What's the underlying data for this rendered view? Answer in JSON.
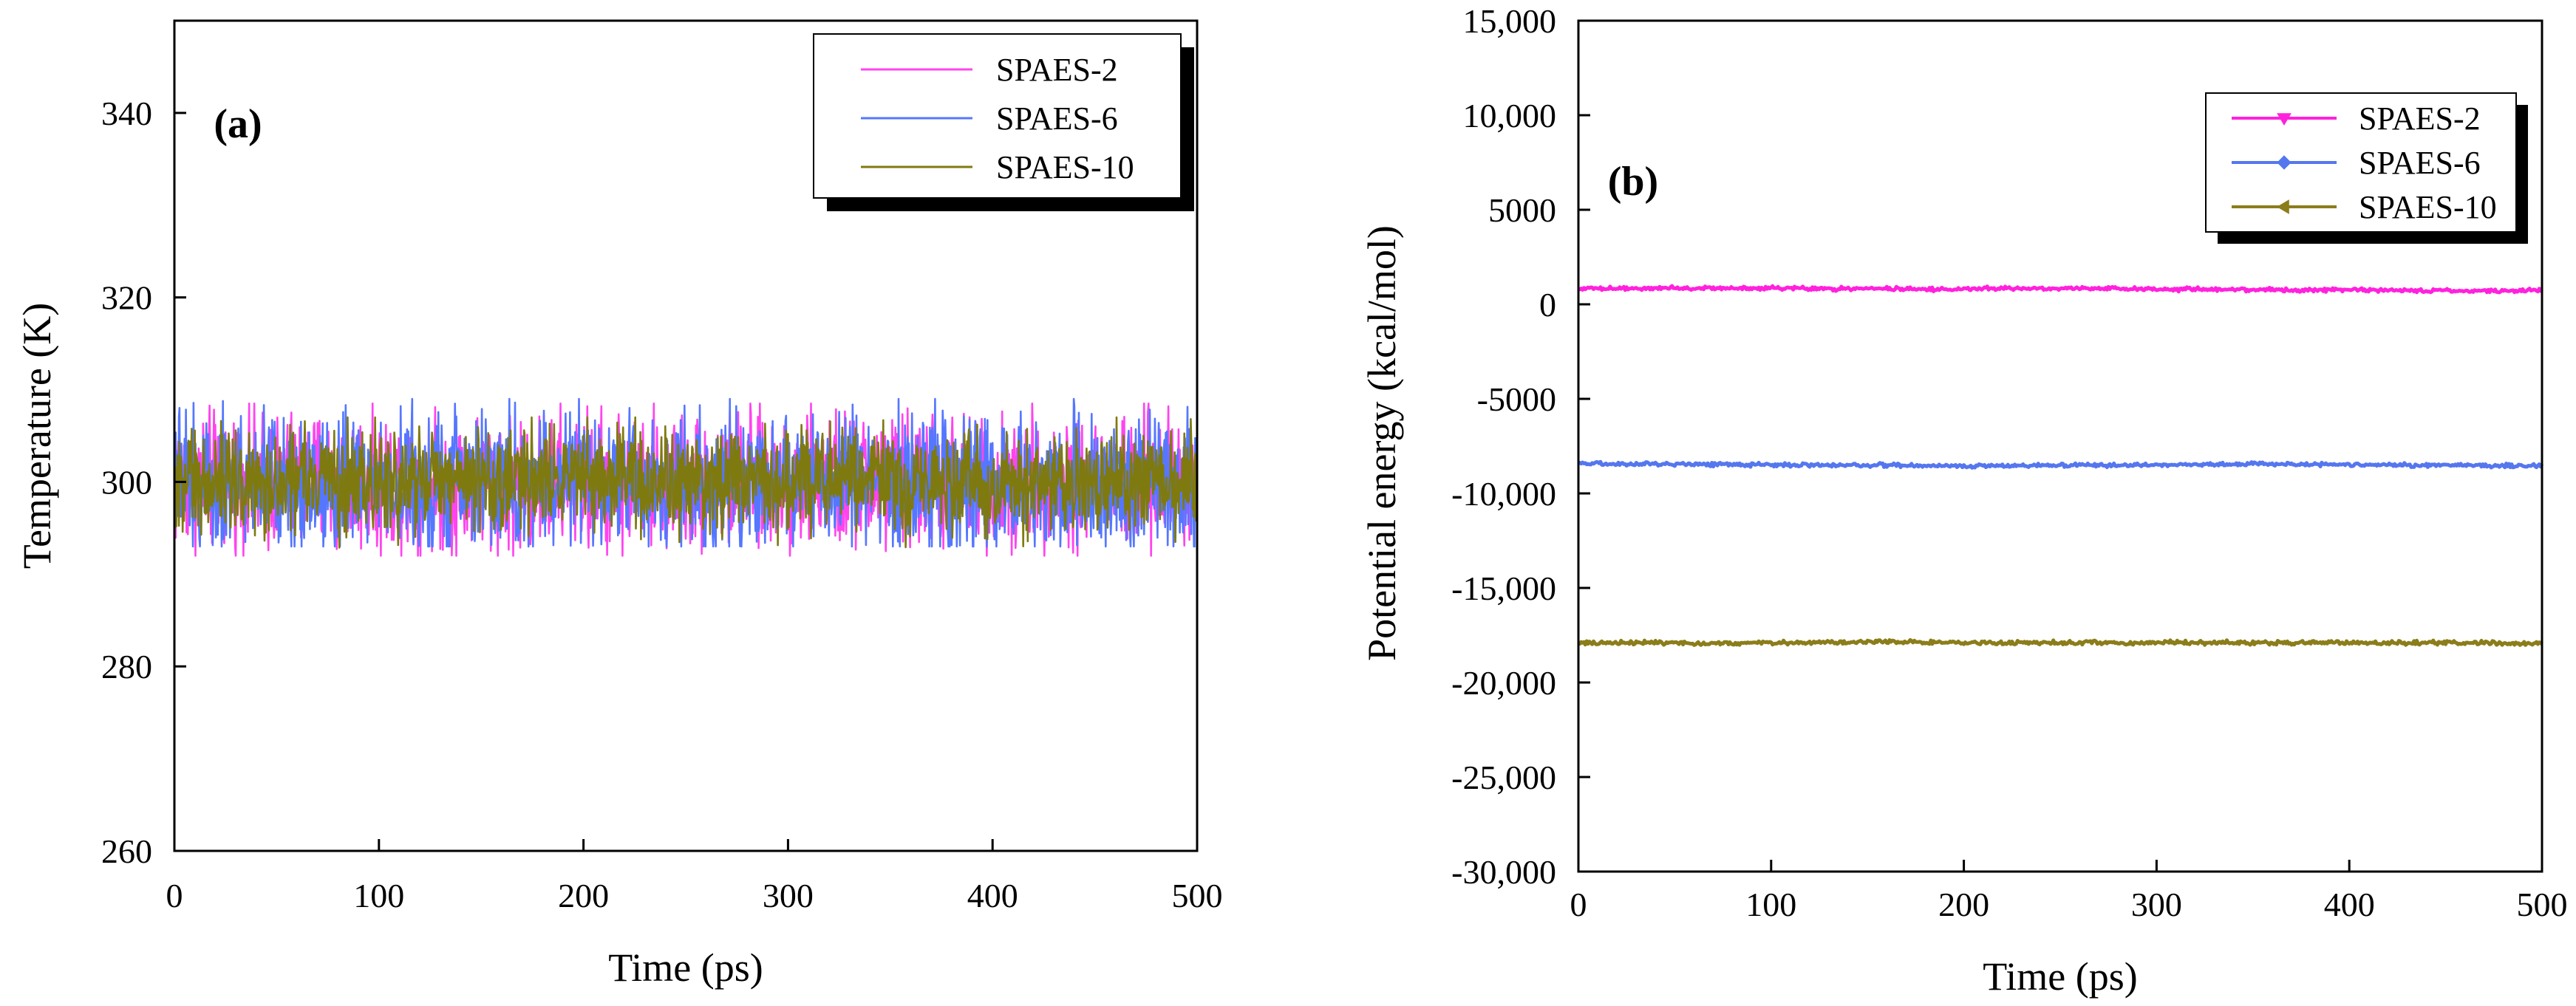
{
  "chart_data": [
    {
      "panel_label": "(a)",
      "type": "line",
      "xlabel": "Time (ps)",
      "ylabel": "Temperature (K)",
      "xlim": [
        0,
        500
      ],
      "ylim": [
        260,
        350
      ],
      "x_ticks": [
        0,
        100,
        200,
        300,
        400,
        500
      ],
      "x_tick_labels": [
        "0",
        "100",
        "200",
        "300",
        "400",
        "500"
      ],
      "y_ticks": [
        260,
        280,
        300,
        320,
        340
      ],
      "y_tick_labels": [
        "260",
        "280",
        "300",
        "320",
        "340"
      ],
      "grid": false,
      "legend_position": "top-right",
      "series": [
        {
          "name": "SPAES-2",
          "color": "#ff44ee",
          "marker": "none",
          "mean": 300,
          "fluctuation": 3.2,
          "min": 292,
          "max": 308.5
        },
        {
          "name": "SPAES-6",
          "color": "#5577ff",
          "marker": "none",
          "mean": 300,
          "fluctuation": 3.2,
          "min": 293,
          "max": 309
        },
        {
          "name": "SPAES-10",
          "color": "#7f7a10",
          "marker": "none",
          "mean": 300,
          "fluctuation": 2.4,
          "min": 292,
          "max": 307
        }
      ]
    },
    {
      "panel_label": "(b)",
      "type": "line",
      "xlabel": "Time (ps)",
      "ylabel": "Potential energy (kcal/mol)",
      "xlim": [
        0,
        500
      ],
      "ylim": [
        -30000,
        15000
      ],
      "x_ticks": [
        0,
        100,
        200,
        300,
        400,
        500
      ],
      "x_tick_labels": [
        "0",
        "100",
        "200",
        "300",
        "400",
        "500"
      ],
      "y_ticks": [
        -30000,
        -25000,
        -20000,
        -15000,
        -10000,
        -5000,
        0,
        5000,
        10000,
        15000
      ],
      "y_tick_labels": [
        "-30,000",
        "-25,000",
        "-20,000",
        "-15,000",
        "-10,000",
        "-5000",
        "0",
        "5000",
        "10,000",
        "15,000"
      ],
      "grid": false,
      "legend_position": "top-right",
      "series": [
        {
          "name": "SPAES-2",
          "color": "#ff22dd",
          "marker": "triangle-down",
          "mean": 850,
          "fluctuation": 120
        },
        {
          "name": "SPAES-6",
          "color": "#5577ee",
          "marker": "diamond",
          "mean": -8450,
          "fluctuation": 120
        },
        {
          "name": "SPAES-10",
          "color": "#8b7d1a",
          "marker": "triangle-left",
          "mean": -17900,
          "fluctuation": 130
        }
      ]
    }
  ]
}
